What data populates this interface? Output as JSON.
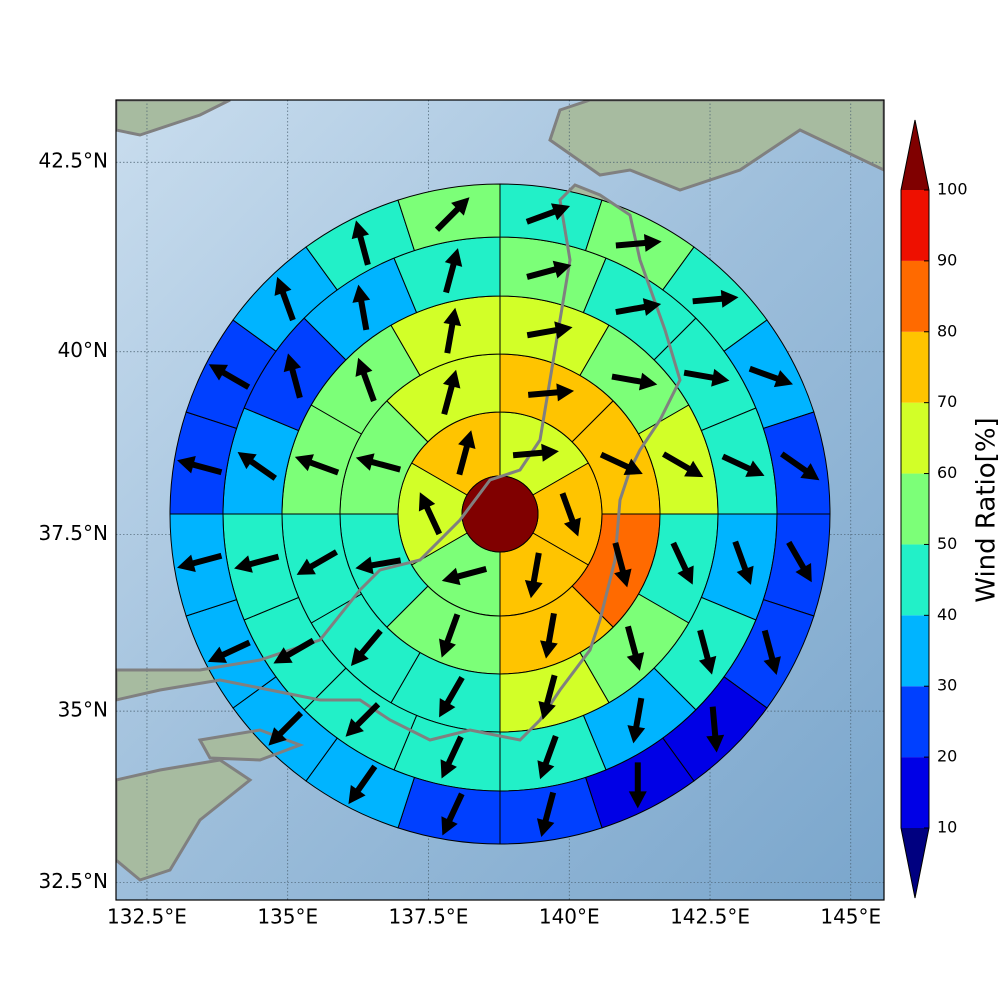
{
  "chart_data": {
    "type": "polar_wedge_map",
    "xlim": [
      131.95,
      145.59
    ],
    "ylim": [
      32.24,
      43.3
    ],
    "xticks": [
      {
        "value": 132.5,
        "label": "132.5°E"
      },
      {
        "value": 135,
        "label": "135°E"
      },
      {
        "value": 137.5,
        "label": "137.5°E"
      },
      {
        "value": 140,
        "label": "140°E"
      },
      {
        "value": 142.5,
        "label": "142.5°E"
      },
      {
        "value": 145,
        "label": "145°E"
      }
    ],
    "yticks": [
      {
        "value": 32.5,
        "label": "32.5°N"
      },
      {
        "value": 35,
        "label": "35°N"
      },
      {
        "value": 37.5,
        "label": "37.5°N"
      },
      {
        "value": 40,
        "label": "40°N"
      },
      {
        "value": 42.5,
        "label": "42.5°N"
      }
    ],
    "grid": true,
    "center_value": 105,
    "rings": [
      {
        "values": [
          65,
          75,
          75,
          55,
          65,
          75
        ],
        "directions": [
          85,
          160,
          190,
          255,
          335,
          15
        ]
      },
      {
        "values": [
          75,
          75,
          85,
          75,
          55,
          45,
          55,
          65
        ],
        "directions": [
          85,
          115,
          165,
          190,
          200,
          260,
          285,
          15
        ]
      },
      {
        "values": [
          65,
          55,
          65,
          45,
          55,
          65,
          45,
          45,
          45,
          55,
          55,
          65
        ],
        "directions": [
          80,
          100,
          120,
          155,
          165,
          195,
          210,
          220,
          240,
          290,
          340,
          10
        ]
      },
      {
        "values": [
          55,
          45,
          45,
          45,
          35,
          45,
          35,
          45,
          45,
          45,
          45,
          45,
          35,
          25,
          35,
          45
        ],
        "directions": [
          75,
          80,
          100,
          115,
          160,
          165,
          190,
          200,
          205,
          225,
          240,
          255,
          305,
          345,
          350,
          15
        ]
      },
      {
        "values": [
          45,
          55,
          45,
          35,
          25,
          25,
          25,
          15,
          15,
          25,
          25,
          35,
          35,
          35,
          35,
          25,
          25,
          35,
          45,
          55
        ],
        "directions": [
          70,
          85,
          85,
          110,
          125,
          150,
          165,
          175,
          180,
          195,
          205,
          215,
          225,
          245,
          255,
          285,
          300,
          340,
          345,
          45
        ]
      }
    ],
    "colorbar": {
      "label": "Wind Ratio[%]",
      "ticks": [
        10,
        20,
        30,
        40,
        50,
        60,
        70,
        80,
        90,
        100
      ],
      "colors": [
        "#0000e6",
        "#0040ff",
        "#00b4ff",
        "#22f0c8",
        "#7cff78",
        "#d2ff28",
        "#ffc400",
        "#ff6a00",
        "#ee1000"
      ],
      "under_color": "#000080",
      "over_color": "#800000"
    }
  }
}
